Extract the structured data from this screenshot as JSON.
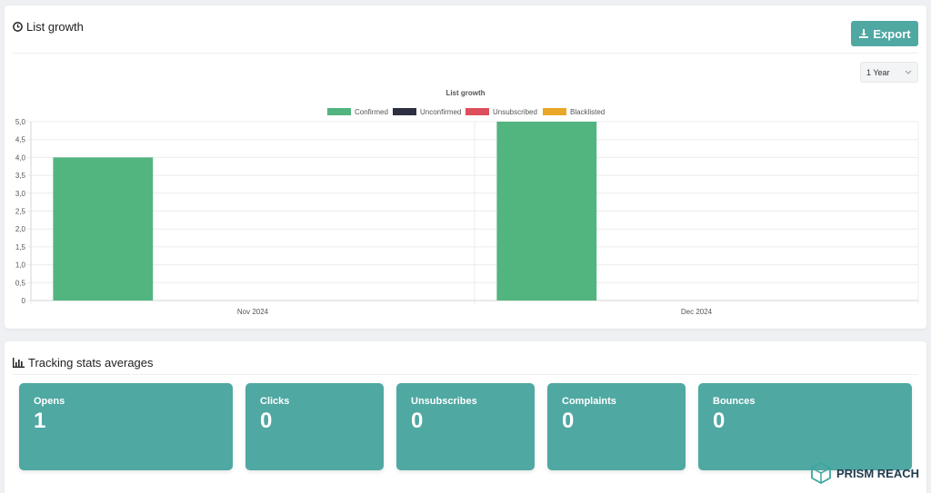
{
  "list_growth": {
    "title": "List growth",
    "export_label": "Export",
    "range_select": "1 Year"
  },
  "chart_data": {
    "type": "bar",
    "title": "List growth",
    "categories": [
      "Nov 2024",
      "Dec 2024"
    ],
    "series": [
      {
        "name": "Confirmed",
        "values": [
          4,
          5
        ],
        "color": "#52b47f"
      },
      {
        "name": "Unconfirmed",
        "values": [
          0,
          0
        ],
        "color": "#2d3041"
      },
      {
        "name": "Unsubscribed",
        "values": [
          0,
          0
        ],
        "color": "#dc4f5c"
      },
      {
        "name": "Blacklisted",
        "values": [
          0,
          0
        ],
        "color": "#eaa728"
      }
    ],
    "ylim": [
      0,
      5
    ],
    "y_ticks": [
      "0",
      "0,5",
      "1,0",
      "1,5",
      "2,0",
      "2,5",
      "3,0",
      "3,5",
      "4,0",
      "4,5",
      "5,0"
    ],
    "legend_position": "top",
    "grid": true
  },
  "tracking": {
    "title": "Tracking stats averages",
    "cards": [
      {
        "label": "Opens",
        "value": "1"
      },
      {
        "label": "Clicks",
        "value": "0"
      },
      {
        "label": "Unsubscribes",
        "value": "0"
      },
      {
        "label": "Complaints",
        "value": "0"
      },
      {
        "label": "Bounces",
        "value": "0"
      }
    ]
  },
  "brand": {
    "name": "PRISM REACH"
  },
  "colors": {
    "accent": "#4fa8a2"
  }
}
